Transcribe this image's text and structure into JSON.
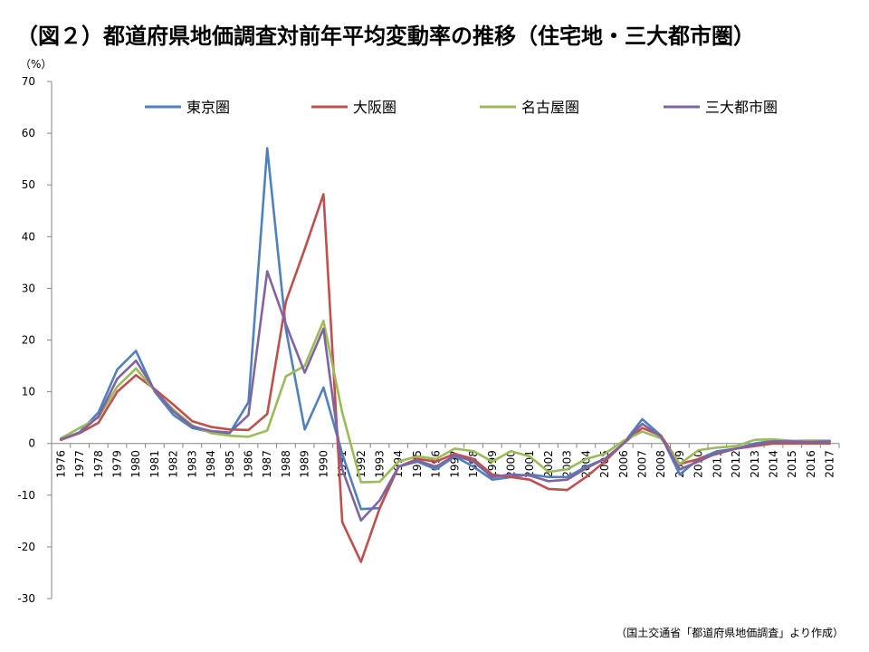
{
  "page": {
    "title": "（図２）都道府県地価調査対前年平均変動率の推移（住宅地・三大都市圏）",
    "y_unit": "（%）",
    "source": "（国土交通省「都道府県地価調査」より作成）"
  },
  "chart_data": {
    "type": "line",
    "title": "（図２）都道府県地価調査対前年平均変動率の推移（住宅地・三大都市圏）",
    "xlabel": "",
    "ylabel": "（%）",
    "ylim": [
      -30,
      70
    ],
    "yticks": [
      70,
      60,
      50,
      40,
      30,
      20,
      10,
      0,
      -10,
      -20,
      -30
    ],
    "grid": false,
    "legend_position": "top",
    "x": [
      "1976",
      "1977",
      "1978",
      "1979",
      "1980",
      "1981",
      "1982",
      "1983",
      "1984",
      "1985",
      "1986",
      "1987",
      "1988",
      "1989",
      "1990",
      "1991",
      "1992",
      "1993",
      "1994",
      "1995",
      "1996",
      "1997",
      "1998",
      "1999",
      "2000",
      "2001",
      "2002",
      "2003",
      "2004",
      "2005",
      "2006",
      "2007",
      "2008",
      "2009",
      "2010",
      "2011",
      "2012",
      "2013",
      "2014",
      "2015",
      "2016",
      "2017"
    ],
    "series": [
      {
        "name": "東京圏",
        "color": "#4f81bd",
        "values": [
          0.7,
          2.2,
          6.0,
          14.3,
          17.9,
          10.0,
          5.5,
          3.0,
          2.2,
          2.0,
          8.0,
          57.1,
          22.0,
          2.7,
          10.8,
          -2.0,
          -12.7,
          -12.5,
          -4.5,
          -3.5,
          -5.0,
          -2.5,
          -4.5,
          -7.0,
          -6.5,
          -6.0,
          -6.5,
          -6.5,
          -4.5,
          -3.0,
          0.0,
          4.7,
          1.5,
          -6.0,
          -3.0,
          -1.5,
          -1.0,
          0.0,
          0.5,
          0.5,
          0.5,
          0.5
        ]
      },
      {
        "name": "大阪圏",
        "color": "#c0504d",
        "values": [
          0.7,
          2.0,
          4.0,
          10.0,
          13.2,
          10.5,
          7.5,
          4.3,
          3.2,
          2.7,
          2.6,
          5.7,
          27.5,
          37.6,
          48.2,
          -15.2,
          -22.9,
          -12.5,
          -4.5,
          -3.0,
          -3.5,
          -2.0,
          -3.0,
          -6.0,
          -6.5,
          -7.0,
          -8.8,
          -9.0,
          -6.5,
          -3.5,
          0.0,
          3.0,
          1.5,
          -4.0,
          -3.0,
          -2.0,
          -1.0,
          -0.5,
          0.0,
          0.0,
          0.0,
          0.0
        ]
      },
      {
        "name": "名古屋圏",
        "color": "#9bbb59",
        "values": [
          1.0,
          3.0,
          5.0,
          11.0,
          14.5,
          10.2,
          6.5,
          3.5,
          2.0,
          1.5,
          1.3,
          2.5,
          13.0,
          15.0,
          23.7,
          6.0,
          -7.5,
          -7.4,
          -3.5,
          -2.5,
          -3.0,
          -1.0,
          -1.5,
          -3.5,
          -1.5,
          -2.5,
          -5.5,
          -5.0,
          -3.0,
          -2.0,
          0.5,
          2.3,
          1.0,
          -4.0,
          -1.3,
          -0.8,
          -0.5,
          0.7,
          0.8,
          0.5,
          0.4,
          0.4
        ]
      },
      {
        "name": "三大都市圏",
        "color": "#8064a2",
        "values": [
          0.8,
          2.1,
          5.2,
          12.5,
          16.0,
          10.3,
          6.2,
          3.3,
          2.4,
          2.1,
          5.5,
          33.3,
          23.0,
          13.7,
          22.2,
          -5.0,
          -14.9,
          -11.0,
          -4.5,
          -3.3,
          -4.5,
          -2.3,
          -3.5,
          -6.5,
          -6.0,
          -6.2,
          -7.3,
          -7.0,
          -4.8,
          -3.0,
          0.0,
          3.8,
          1.3,
          -5.0,
          -3.5,
          -1.8,
          -1.0,
          -0.3,
          0.4,
          0.4,
          0.3,
          0.4
        ]
      }
    ]
  }
}
